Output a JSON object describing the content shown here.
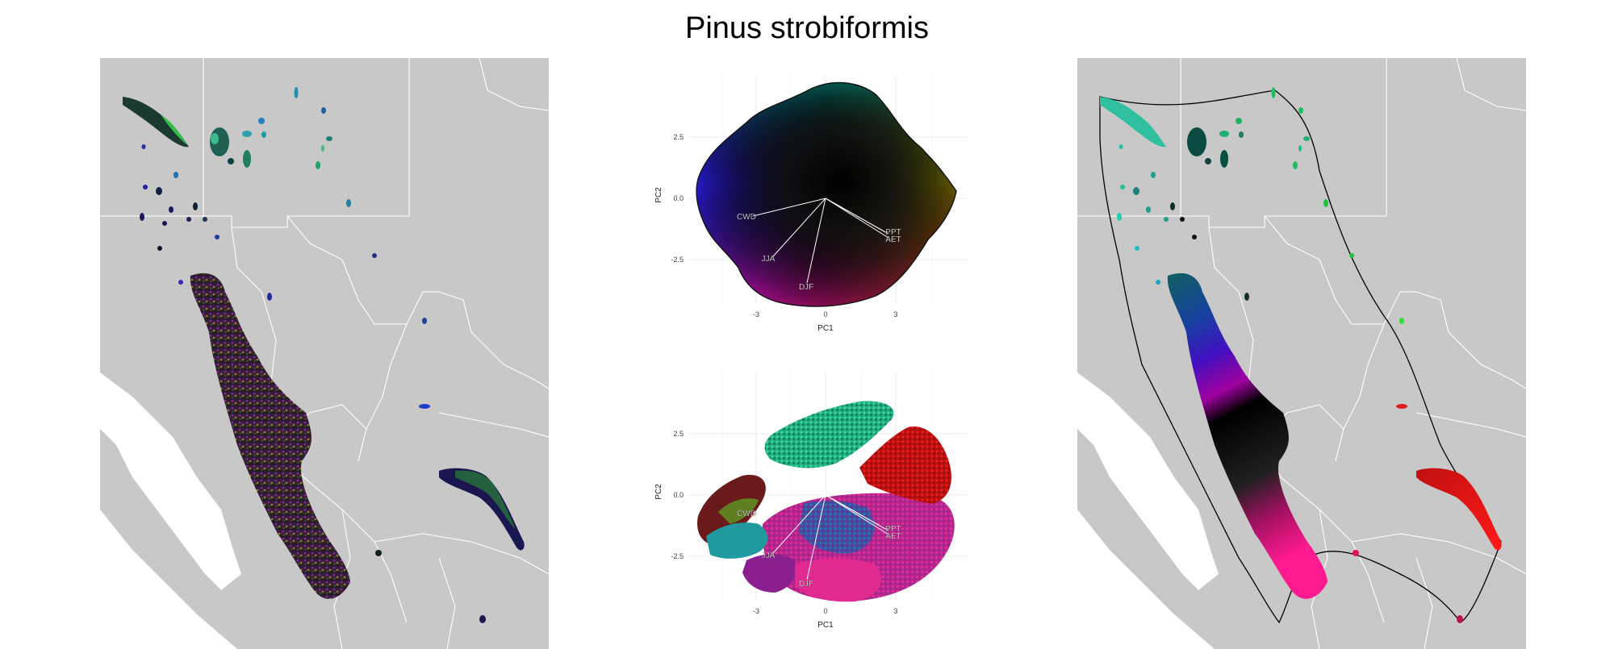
{
  "title": "Pinus strobiformis",
  "colors": {
    "land": "#c8c8c8",
    "border": "#ffffff",
    "hull": "#000000",
    "grid": "#ebebeb"
  },
  "pca_plots": [
    {
      "name": "pca-environment-color-space",
      "xlabel": "PC1",
      "ylabel": "PC2",
      "xticks": [
        -3,
        0,
        3
      ],
      "yticks": [
        2.5,
        0.0,
        -2.5
      ],
      "vectors": [
        "CWD",
        "JJA",
        "DJF",
        "PPT",
        "AET"
      ],
      "style": "color-space"
    },
    {
      "name": "pca-population-points",
      "xlabel": "PC1",
      "ylabel": "PC2",
      "xticks": [
        -3,
        0,
        3
      ],
      "yticks": [
        2.5,
        0.0,
        -2.5
      ],
      "vectors": [
        "CWD",
        "JJA",
        "DJF",
        "PPT",
        "AET"
      ],
      "style": "points"
    }
  ],
  "maps": [
    {
      "name": "map-climate-rgb",
      "style": "rgb-texture"
    },
    {
      "name": "map-cluster-colors",
      "style": "smooth-gradient",
      "hull": true
    }
  ]
}
